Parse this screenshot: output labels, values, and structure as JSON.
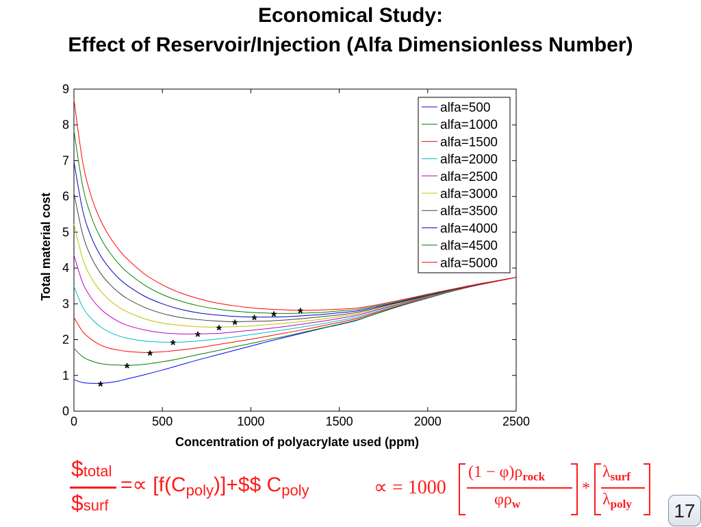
{
  "slide": {
    "title_line1": "Economical Study:",
    "title_line2": "Effect of Reservoir/Injection (Alfa Dimensionless Number)",
    "page_number": "17"
  },
  "formula_left": {
    "numerator_symbol": "$",
    "numerator_sub": "total",
    "denominator_symbol": "$",
    "denominator_sub": "surf",
    "eq_part1": "=∝ [f(C",
    "eq_sub1": "poly",
    "eq_part2": ")]+$$ C",
    "eq_sub2": "poly"
  },
  "formula_right": {
    "lhs": "∝ = 1000",
    "frac1_num": "(1 − φ)ρ",
    "frac1_num_sub": "rock",
    "frac1_den": "φρ",
    "frac1_den_sub": "w",
    "times": "*",
    "frac2_num": "λ",
    "frac2_num_sub": "surf",
    "frac2_den": "λ",
    "frac2_den_sub": "poly"
  },
  "colors": {
    "formula": "#ff1a1a",
    "minimum_marker": "#000000"
  },
  "chart_data": {
    "type": "line",
    "xlabel": "Concentration of polyacrylate used (ppm)",
    "ylabel": "Total material cost",
    "xlim": [
      0,
      2500
    ],
    "ylim": [
      0,
      9
    ],
    "x_ticks": [
      "0",
      "500",
      "1000",
      "1500",
      "2000",
      "2500"
    ],
    "y_ticks": [
      "0",
      "1",
      "2",
      "3",
      "4",
      "5",
      "6",
      "7",
      "8",
      "9"
    ],
    "grid": false,
    "legend_position": "top-right",
    "x": [
      0,
      50,
      100,
      150,
      200,
      250,
      300,
      400,
      500,
      600,
      700,
      800,
      900,
      1000,
      1100,
      1200,
      1300,
      1400,
      1500,
      1600,
      1700,
      1800,
      1900,
      2000,
      2100,
      2200,
      2300,
      2400,
      2500
    ],
    "series": [
      {
        "name": "alfa=500",
        "color": "#0000ff",
        "values": [
          0.88,
          0.8,
          0.78,
          0.78,
          0.8,
          0.84,
          0.9,
          1.02,
          1.15,
          1.29,
          1.43,
          1.56,
          1.69,
          1.82,
          1.95,
          2.07,
          2.19,
          2.31,
          2.42,
          2.54,
          2.71,
          2.87,
          3.02,
          3.16,
          3.3,
          3.43,
          3.54,
          3.64,
          3.74
        ]
      },
      {
        "name": "alfa=1000",
        "color": "#008000",
        "values": [
          1.75,
          1.52,
          1.4,
          1.33,
          1.3,
          1.29,
          1.28,
          1.31,
          1.38,
          1.47,
          1.58,
          1.68,
          1.79,
          1.89,
          2.0,
          2.1,
          2.21,
          2.32,
          2.43,
          2.55,
          2.71,
          2.87,
          3.02,
          3.16,
          3.3,
          3.43,
          3.54,
          3.64,
          3.74
        ]
      },
      {
        "name": "alfa=1500",
        "color": "#ff0000",
        "values": [
          2.62,
          2.22,
          2.0,
          1.85,
          1.76,
          1.71,
          1.67,
          1.64,
          1.66,
          1.71,
          1.77,
          1.85,
          1.93,
          2.01,
          2.1,
          2.19,
          2.28,
          2.38,
          2.48,
          2.59,
          2.74,
          2.89,
          3.03,
          3.17,
          3.31,
          3.43,
          3.54,
          3.64,
          3.74
        ]
      },
      {
        "name": "alfa=2000",
        "color": "#00bfbf",
        "values": [
          3.49,
          2.9,
          2.58,
          2.36,
          2.21,
          2.11,
          2.04,
          1.96,
          1.93,
          1.93,
          1.96,
          2.01,
          2.07,
          2.14,
          2.21,
          2.28,
          2.36,
          2.44,
          2.53,
          2.63,
          2.77,
          2.91,
          3.05,
          3.18,
          3.31,
          3.44,
          3.55,
          3.65,
          3.74
        ]
      },
      {
        "name": "alfa=2500",
        "color": "#bf00bf",
        "values": [
          4.36,
          3.58,
          3.15,
          2.86,
          2.66,
          2.51,
          2.4,
          2.27,
          2.19,
          2.16,
          2.16,
          2.17,
          2.21,
          2.26,
          2.31,
          2.37,
          2.44,
          2.51,
          2.59,
          2.68,
          2.81,
          2.94,
          3.07,
          3.2,
          3.32,
          3.44,
          3.55,
          3.65,
          3.74
        ]
      },
      {
        "name": "alfa=3000",
        "color": "#bfbf00",
        "values": [
          5.23,
          4.25,
          3.71,
          3.36,
          3.11,
          2.92,
          2.78,
          2.58,
          2.46,
          2.4,
          2.36,
          2.35,
          2.36,
          2.38,
          2.42,
          2.46,
          2.51,
          2.57,
          2.64,
          2.72,
          2.84,
          2.96,
          3.09,
          3.21,
          3.33,
          3.45,
          3.56,
          3.65,
          3.74
        ]
      },
      {
        "name": "alfa=3500",
        "color": "#404040",
        "values": [
          6.1,
          4.93,
          4.28,
          3.86,
          3.56,
          3.33,
          3.15,
          2.9,
          2.73,
          2.62,
          2.56,
          2.52,
          2.5,
          2.51,
          2.52,
          2.55,
          2.59,
          2.64,
          2.69,
          2.76,
          2.87,
          2.99,
          3.11,
          3.22,
          3.34,
          3.45,
          3.56,
          3.65,
          3.74
        ]
      },
      {
        "name": "alfa=4000",
        "color": "#0000bf",
        "values": [
          6.97,
          5.6,
          4.84,
          4.35,
          4.0,
          3.73,
          3.52,
          3.21,
          3.0,
          2.85,
          2.75,
          2.69,
          2.65,
          2.63,
          2.63,
          2.64,
          2.67,
          2.7,
          2.75,
          2.8,
          2.9,
          3.01,
          3.12,
          3.24,
          3.35,
          3.46,
          3.56,
          3.65,
          3.74
        ]
      },
      {
        "name": "alfa=4500",
        "color": "#008000",
        "values": [
          7.84,
          6.28,
          5.41,
          4.85,
          4.45,
          4.14,
          3.89,
          3.52,
          3.26,
          3.08,
          2.95,
          2.86,
          2.8,
          2.76,
          2.74,
          2.73,
          2.74,
          2.76,
          2.8,
          2.84,
          2.93,
          3.03,
          3.14,
          3.25,
          3.36,
          3.46,
          3.56,
          3.65,
          3.74
        ]
      },
      {
        "name": "alfa=5000",
        "color": "#ff0000",
        "values": [
          8.71,
          6.95,
          5.97,
          5.34,
          4.89,
          4.54,
          4.26,
          3.83,
          3.53,
          3.31,
          3.15,
          3.03,
          2.95,
          2.89,
          2.85,
          2.83,
          2.82,
          2.83,
          2.85,
          2.88,
          2.96,
          3.06,
          3.16,
          3.27,
          3.37,
          3.47,
          3.57,
          3.65,
          3.74
        ]
      }
    ],
    "minimum_markers": {
      "symbol": "*",
      "points": [
        [
          150,
          0.78
        ],
        [
          300,
          1.28
        ],
        [
          430,
          1.64
        ],
        [
          560,
          1.93
        ],
        [
          700,
          2.16
        ],
        [
          820,
          2.35
        ],
        [
          910,
          2.5
        ],
        [
          1020,
          2.63
        ],
        [
          1130,
          2.73
        ],
        [
          1280,
          2.82
        ]
      ]
    }
  }
}
